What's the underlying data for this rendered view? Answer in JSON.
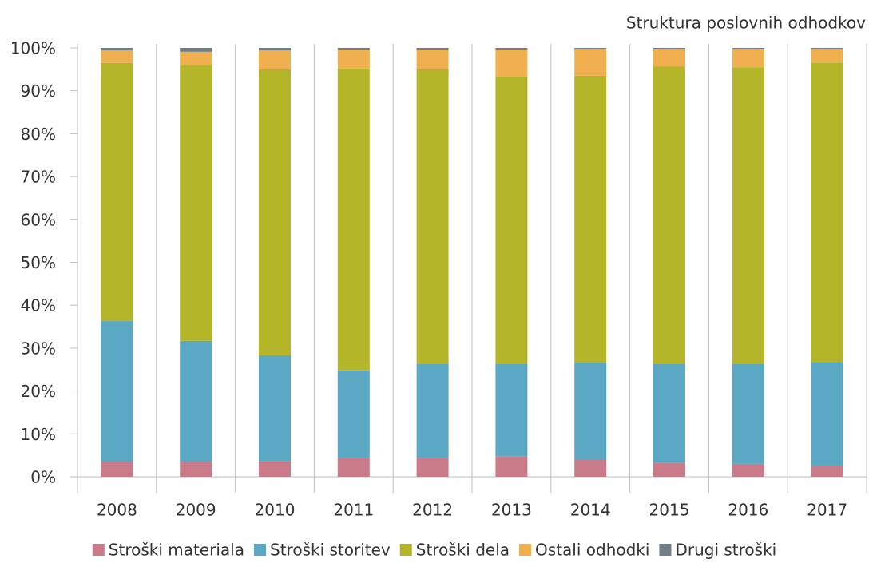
{
  "chart_data": {
    "type": "stacked_bar",
    "title": "Struktura poslovnih odhodkov",
    "categories": [
      "2008",
      "2009",
      "2010",
      "2011",
      "2012",
      "2013",
      "2014",
      "2015",
      "2016",
      "2017"
    ],
    "series": [
      {
        "name": "Stroški materiala",
        "color": "#c97b8a",
        "values": [
          3.5,
          3.5,
          3.7,
          4.3,
          4.3,
          4.7,
          4.0,
          3.2,
          3.0,
          2.6
        ]
      },
      {
        "name": "Stroški storitev",
        "color": "#5ba8c5",
        "values": [
          32.8,
          28.2,
          24.6,
          20.5,
          22.1,
          21.7,
          22.6,
          23.2,
          23.4,
          24.2
        ]
      },
      {
        "name": "Stroški dela",
        "color": "#b5b52a",
        "values": [
          60.2,
          64.2,
          66.7,
          70.4,
          68.6,
          66.9,
          66.9,
          69.3,
          69.1,
          69.8
        ]
      },
      {
        "name": "Ostali odhodki",
        "color": "#f0b050",
        "values": [
          2.9,
          3.2,
          4.4,
          4.4,
          4.6,
          6.3,
          6.3,
          4.1,
          4.3,
          3.2
        ]
      },
      {
        "name": "Drugi stroški",
        "color": "#737d84",
        "values": [
          0.6,
          0.9,
          0.6,
          0.4,
          0.4,
          0.4,
          0.2,
          0.2,
          0.2,
          0.2
        ]
      }
    ],
    "ylim": [
      0,
      100
    ],
    "yticks": [
      {
        "value": 0,
        "label": "0%"
      },
      {
        "value": 10,
        "label": "10%"
      },
      {
        "value": 20,
        "label": "20%"
      },
      {
        "value": 30,
        "label": "30%"
      },
      {
        "value": 40,
        "label": "40%"
      },
      {
        "value": 50,
        "label": "50%"
      },
      {
        "value": 60,
        "label": "60%"
      },
      {
        "value": 70,
        "label": "70%"
      },
      {
        "value": 80,
        "label": "80%"
      },
      {
        "value": 90,
        "label": "90%"
      },
      {
        "value": 100,
        "label": "100%"
      }
    ],
    "legend": "bottom"
  }
}
